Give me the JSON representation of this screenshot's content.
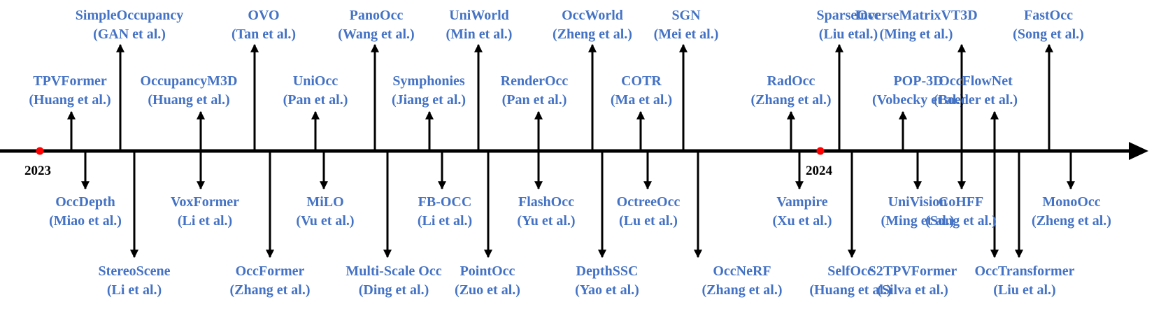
{
  "colors": {
    "label": "#4472c4",
    "line": "#000000",
    "year_dot": "#ff0000"
  },
  "years": [
    "2023",
    "2024"
  ],
  "methods": [
    {
      "name": "SimpleOccupancy",
      "authors": "(GAN et al.)",
      "side": "above",
      "level": "high"
    },
    {
      "name": "TPVFormer",
      "authors": "(Huang et al.)",
      "side": "above",
      "level": "low"
    },
    {
      "name": "OccDepth",
      "authors": "(Miao et al.)",
      "side": "below",
      "level": "low"
    },
    {
      "name": "StereoScene",
      "authors": "(Li et al.)",
      "side": "below",
      "level": "high"
    },
    {
      "name": "OccupancyM3D",
      "authors": "(Huang et al.)",
      "side": "above",
      "level": "low"
    },
    {
      "name": "VoxFormer",
      "authors": "(Li et al.)",
      "side": "below",
      "level": "low"
    },
    {
      "name": "OVO",
      "authors": "(Tan et al.)",
      "side": "above",
      "level": "high"
    },
    {
      "name": "OccFormer",
      "authors": "(Zhang et al.)",
      "side": "below",
      "level": "high"
    },
    {
      "name": "UniOcc",
      "authors": "(Pan et al.)",
      "side": "above",
      "level": "low"
    },
    {
      "name": "MiLO",
      "authors": "(Vu et al.)",
      "side": "below",
      "level": "low"
    },
    {
      "name": "PanoOcc",
      "authors": "(Wang et al.)",
      "side": "above",
      "level": "high"
    },
    {
      "name": "Multi-Scale Occ",
      "authors": "(Ding et al.)",
      "side": "below",
      "level": "high"
    },
    {
      "name": "Symphonies",
      "authors": "(Jiang et al.)",
      "side": "above",
      "level": "low"
    },
    {
      "name": "FB-OCC",
      "authors": "(Li et al.)",
      "side": "below",
      "level": "low"
    },
    {
      "name": "UniWorld",
      "authors": "(Min et al.)",
      "side": "above",
      "level": "high"
    },
    {
      "name": "PointOcc",
      "authors": "(Zuo et al.)",
      "side": "below",
      "level": "high"
    },
    {
      "name": "RenderOcc",
      "authors": "(Pan et al.)",
      "side": "above",
      "level": "low"
    },
    {
      "name": "FlashOcc",
      "authors": "(Yu et al.)",
      "side": "below",
      "level": "low"
    },
    {
      "name": "OccWorld",
      "authors": "(Zheng et al.)",
      "side": "above",
      "level": "high"
    },
    {
      "name": "DepthSSC",
      "authors": "(Yao et al.)",
      "side": "below",
      "level": "high"
    },
    {
      "name": "COTR",
      "authors": "(Ma et al.)",
      "side": "above",
      "level": "low"
    },
    {
      "name": "OctreeOcc",
      "authors": "(Lu et al.)",
      "side": "below",
      "level": "low"
    },
    {
      "name": "SGN",
      "authors": "(Mei et al.)",
      "side": "above",
      "level": "high"
    },
    {
      "name": "OccNeRF",
      "authors": "(Zhang et al.)",
      "side": "below",
      "level": "high"
    },
    {
      "name": "RadOcc",
      "authors": "(Zhang et al.)",
      "side": "above",
      "level": "low"
    },
    {
      "name": "Vampire",
      "authors": "(Xu et al.)",
      "side": "below",
      "level": "low"
    },
    {
      "name": "SparseOcc",
      "authors": "(Liu etal.)",
      "side": "above",
      "level": "high"
    },
    {
      "name": "SelfOcc",
      "authors": "(Huang et al.)",
      "side": "below",
      "level": "high"
    },
    {
      "name": "POP-3D",
      "authors": "(Vobecky et al.)",
      "side": "above",
      "level": "low"
    },
    {
      "name": "UniVision",
      "authors": "(Ming et al.)",
      "side": "below",
      "level": "low"
    },
    {
      "name": "InverseMatrixVT3D",
      "authors": "(Ming et al.)",
      "side": "above",
      "level": "high"
    },
    {
      "name": "S2TPVFormer",
      "authors": "(Silva et al.)",
      "side": "below",
      "level": "high"
    },
    {
      "name": "CoHFF",
      "authors": "(Song et al.)",
      "side": "below",
      "level": "low"
    },
    {
      "name": "OccFlowNet",
      "authors": "(Boeder et al.)",
      "side": "above",
      "level": "low"
    },
    {
      "name": "OccTransformer",
      "authors": "(Liu et al.)",
      "side": "below",
      "level": "high"
    },
    {
      "name": "FastOcc",
      "authors": "(Song et al.)",
      "side": "above",
      "level": "high"
    },
    {
      "name": "MonoOcc",
      "authors": "(Zheng et al.)",
      "side": "below",
      "level": "low"
    }
  ]
}
